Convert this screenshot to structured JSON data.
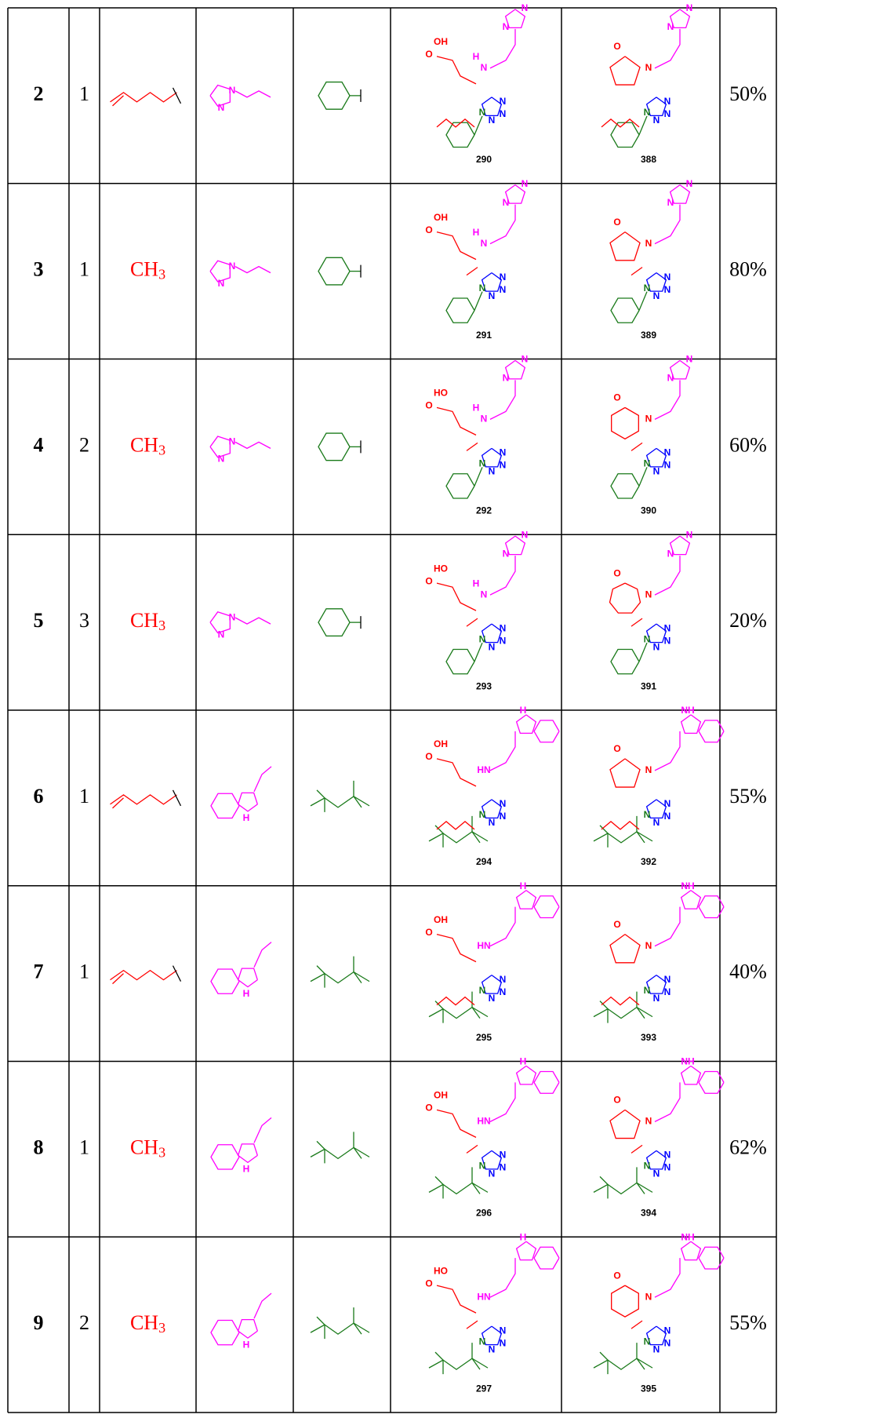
{
  "atoms": {
    "n": "N",
    "h": "H",
    "oh": "OH",
    "o": "O",
    "nh": "NH",
    "hn": "HN",
    "ho": "HO"
  },
  "table": {
    "rows": [
      {
        "entry": "2",
        "n": "1",
        "intermediate": "290",
        "product": "388",
        "yield": "50%"
      },
      {
        "entry": "3",
        "n": "1",
        "r1": {
          "main": "CH",
          "sub": "3"
        },
        "intermediate": "291",
        "product": "389",
        "yield": "80%"
      },
      {
        "entry": "4",
        "n": "2",
        "r1": {
          "main": "CH",
          "sub": "3"
        },
        "intermediate": "292",
        "product": "390",
        "yield": "60%"
      },
      {
        "entry": "5",
        "n": "3",
        "r1": {
          "main": "CH",
          "sub": "3"
        },
        "intermediate": "293",
        "product": "391",
        "yield": "20%"
      },
      {
        "entry": "6",
        "n": "1",
        "intermediate": "294",
        "product": "392",
        "yield": "55%"
      },
      {
        "entry": "7",
        "n": "1",
        "intermediate": "295",
        "product": "393",
        "yield": "40%"
      },
      {
        "entry": "8",
        "n": "1",
        "r1": {
          "main": "CH",
          "sub": "3"
        },
        "intermediate": "296",
        "product": "394",
        "yield": "62%"
      },
      {
        "entry": "9",
        "n": "2",
        "r1": {
          "main": "CH",
          "sub": "3"
        },
        "intermediate": "297",
        "product": "395",
        "yield": "55%"
      }
    ]
  }
}
